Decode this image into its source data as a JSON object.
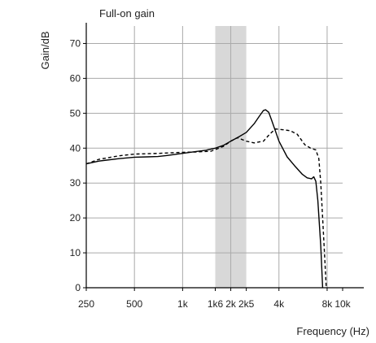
{
  "chart_data": {
    "type": "line",
    "title": "Full-on gain",
    "xlabel": "Frequency (Hz)",
    "ylabel": "Gain/dB",
    "x_scale": "log",
    "xlim": [
      250,
      10000
    ],
    "ylim": [
      0,
      75
    ],
    "grid": true,
    "x_ticks": [
      {
        "value": 250,
        "label": "250"
      },
      {
        "value": 500,
        "label": "500"
      },
      {
        "value": 1000,
        "label": "1k"
      },
      {
        "value": 1600,
        "label": "1k6"
      },
      {
        "value": 2000,
        "label": "2k"
      },
      {
        "value": 2500,
        "label": "2k5"
      },
      {
        "value": 4000,
        "label": "4k"
      },
      {
        "value": 8000,
        "label": "8k"
      },
      {
        "value": 10000,
        "label": "10k"
      }
    ],
    "x_gridlines": [
      500,
      1000,
      2000,
      4000,
      8000
    ],
    "y_ticks": [
      0,
      10,
      20,
      30,
      40,
      50,
      60,
      70
    ],
    "shaded_band": {
      "x": [
        1600,
        2500
      ],
      "color": "#d8d8d8"
    },
    "series": [
      {
        "style": "solid",
        "color": "#000000",
        "points": [
          [
            250,
            35.5
          ],
          [
            300,
            36.3
          ],
          [
            400,
            37.0
          ],
          [
            500,
            37.4
          ],
          [
            600,
            37.5
          ],
          [
            700,
            37.6
          ],
          [
            800,
            37.9
          ],
          [
            1000,
            38.5
          ],
          [
            1200,
            39.0
          ],
          [
            1400,
            39.4
          ],
          [
            1600,
            40.0
          ],
          [
            1800,
            40.8
          ],
          [
            2000,
            42.0
          ],
          [
            2200,
            43.0
          ],
          [
            2500,
            44.5
          ],
          [
            2800,
            47.0
          ],
          [
            3000,
            49.0
          ],
          [
            3200,
            50.8
          ],
          [
            3300,
            51.0
          ],
          [
            3450,
            50.3
          ],
          [
            3600,
            48.0
          ],
          [
            4000,
            42.0
          ],
          [
            4500,
            37.5
          ],
          [
            5000,
            35.0
          ],
          [
            5600,
            32.5
          ],
          [
            6000,
            31.5
          ],
          [
            6400,
            31.2
          ],
          [
            6600,
            31.8
          ],
          [
            6800,
            30.5
          ],
          [
            7000,
            25.0
          ],
          [
            7300,
            12.0
          ],
          [
            7500,
            0
          ]
        ]
      },
      {
        "style": "dashed",
        "color": "#000000",
        "points": [
          [
            250,
            35.5
          ],
          [
            300,
            36.8
          ],
          [
            400,
            37.8
          ],
          [
            500,
            38.3
          ],
          [
            700,
            38.5
          ],
          [
            1000,
            38.8
          ],
          [
            1200,
            38.9
          ],
          [
            1500,
            39.1
          ],
          [
            1800,
            40.5
          ],
          [
            2000,
            42.0
          ],
          [
            2200,
            43.0
          ],
          [
            2500,
            42.0
          ],
          [
            2800,
            41.5
          ],
          [
            3200,
            42.0
          ],
          [
            3500,
            44.0
          ],
          [
            3800,
            45.5
          ],
          [
            4200,
            45.3
          ],
          [
            4700,
            45.0
          ],
          [
            5200,
            44.0
          ],
          [
            5800,
            41.0
          ],
          [
            6300,
            40.0
          ],
          [
            6800,
            39.5
          ],
          [
            7100,
            37.0
          ],
          [
            7300,
            30.0
          ],
          [
            7500,
            20.0
          ],
          [
            7700,
            10.0
          ],
          [
            7900,
            0
          ]
        ]
      }
    ]
  }
}
